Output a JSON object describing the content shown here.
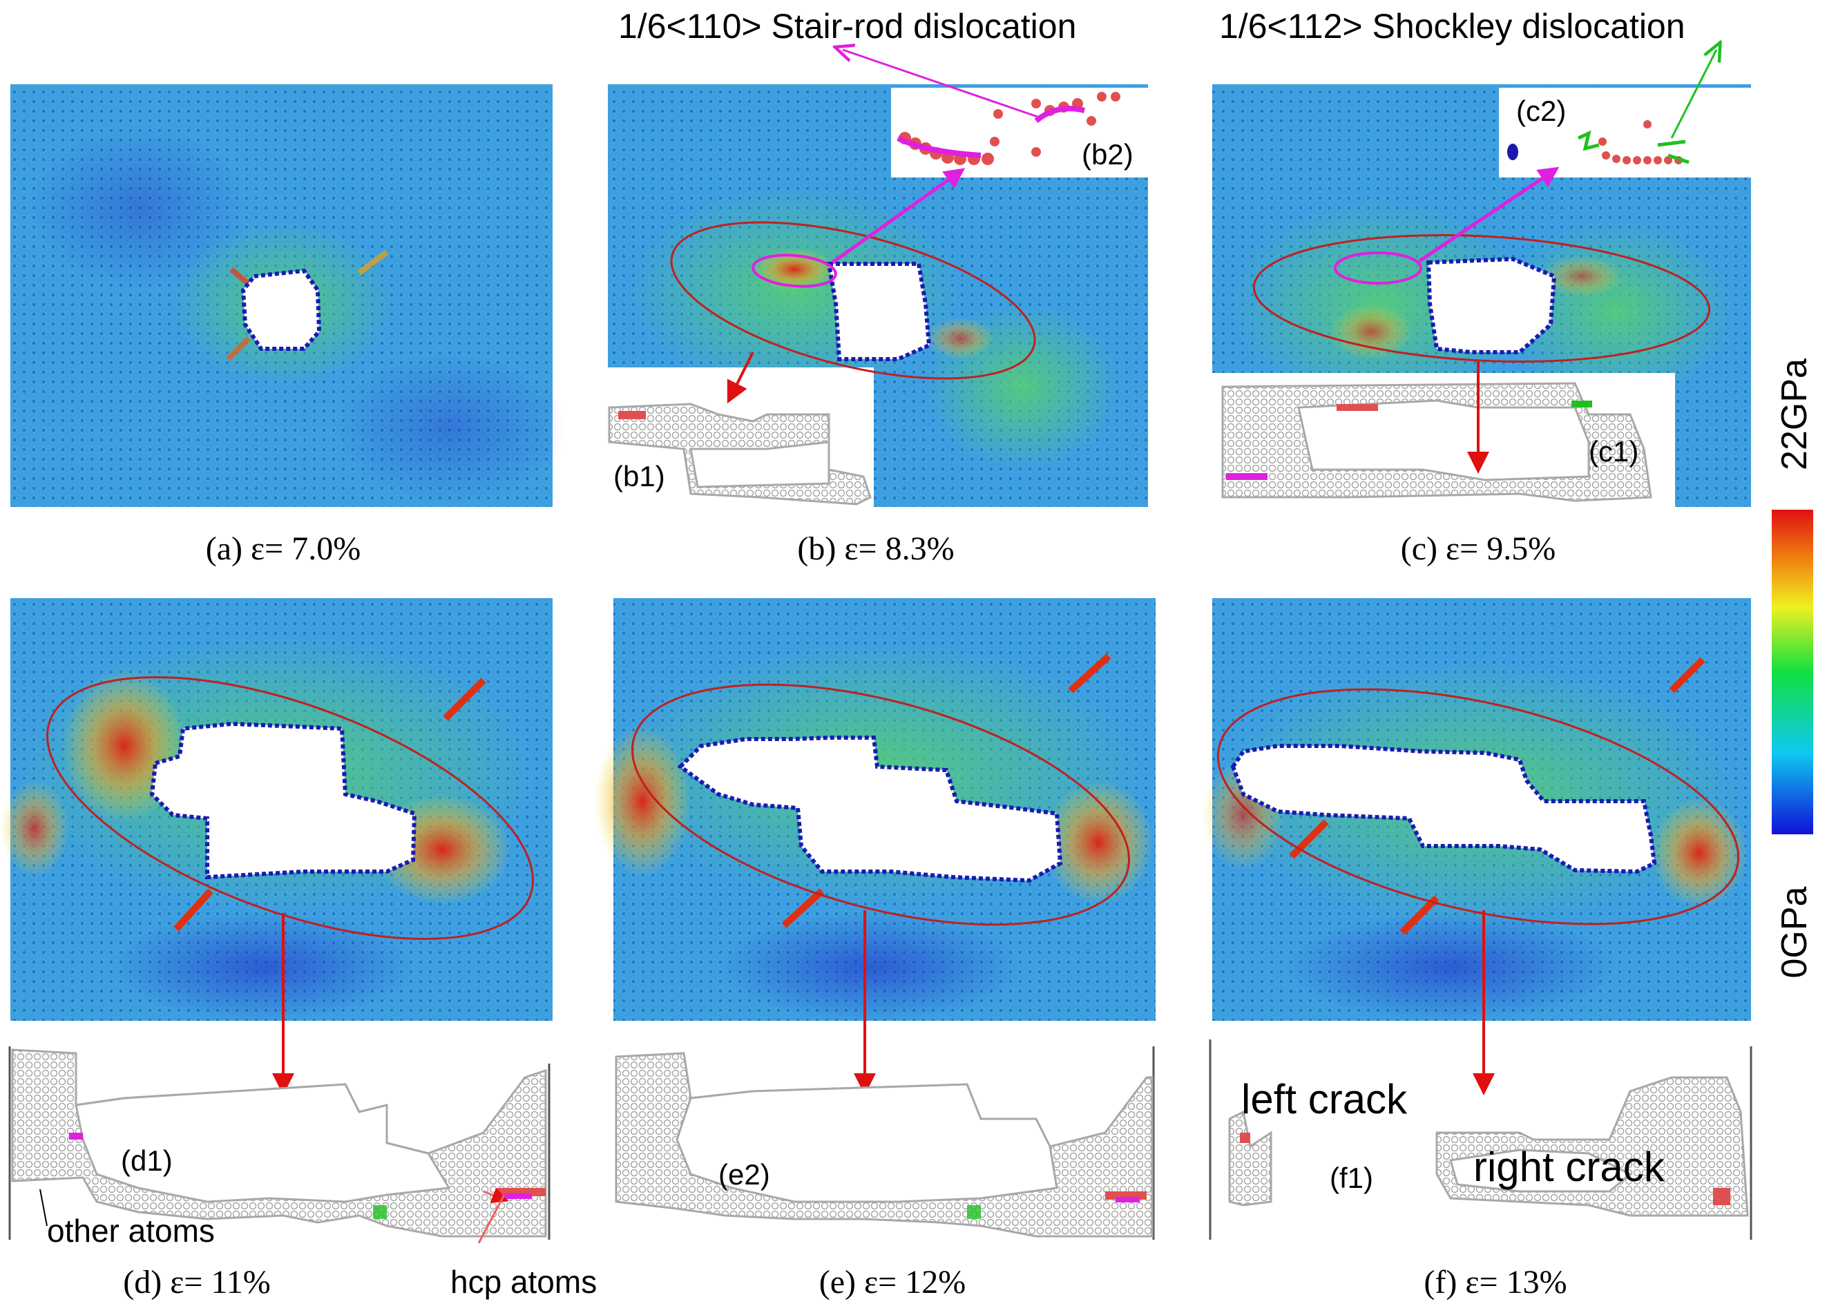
{
  "panels": [
    {
      "id": "a",
      "caption": "(a) ε= 7.0%"
    },
    {
      "id": "b",
      "caption": "(b) ε= 8.3%",
      "insets": [
        "(b1)",
        "(b2)"
      ]
    },
    {
      "id": "c",
      "caption": "(c) ε= 9.5%",
      "insets": [
        "(c1)",
        "(c2)"
      ]
    },
    {
      "id": "d",
      "caption": "(d) ε= 11%",
      "insets": [
        "(d1)"
      ]
    },
    {
      "id": "e",
      "caption": "(e) ε= 12%",
      "insets": [
        "(e2)"
      ]
    },
    {
      "id": "f",
      "caption": "(f) ε= 13%",
      "insets": [
        "(f1)"
      ]
    }
  ],
  "annotations": {
    "stair_rod": "1/6<110> Stair-rod dislocation",
    "shockley": "1/6<112> Shockley dislocation",
    "left_crack": "left crack",
    "right_crack": "right crack",
    "other_atoms": "other atoms",
    "hcp_atoms": "hcp atoms"
  },
  "colorbar": {
    "max_label": "22GPa",
    "min_label": "0GPa",
    "stops": [
      "#1010d8",
      "#10c8f0",
      "#10e040",
      "#f0f020",
      "#f08010",
      "#e01010"
    ]
  },
  "colors": {
    "stair_rod": "#e020e0",
    "shockley": "#20c020",
    "ellipse": "#c02020",
    "arrow": "#e01010",
    "left_crack": "#d01010",
    "right_crack": "#1010c0",
    "hcp_atoms": "#f06060",
    "void_edge": "#1a1ab0"
  }
}
